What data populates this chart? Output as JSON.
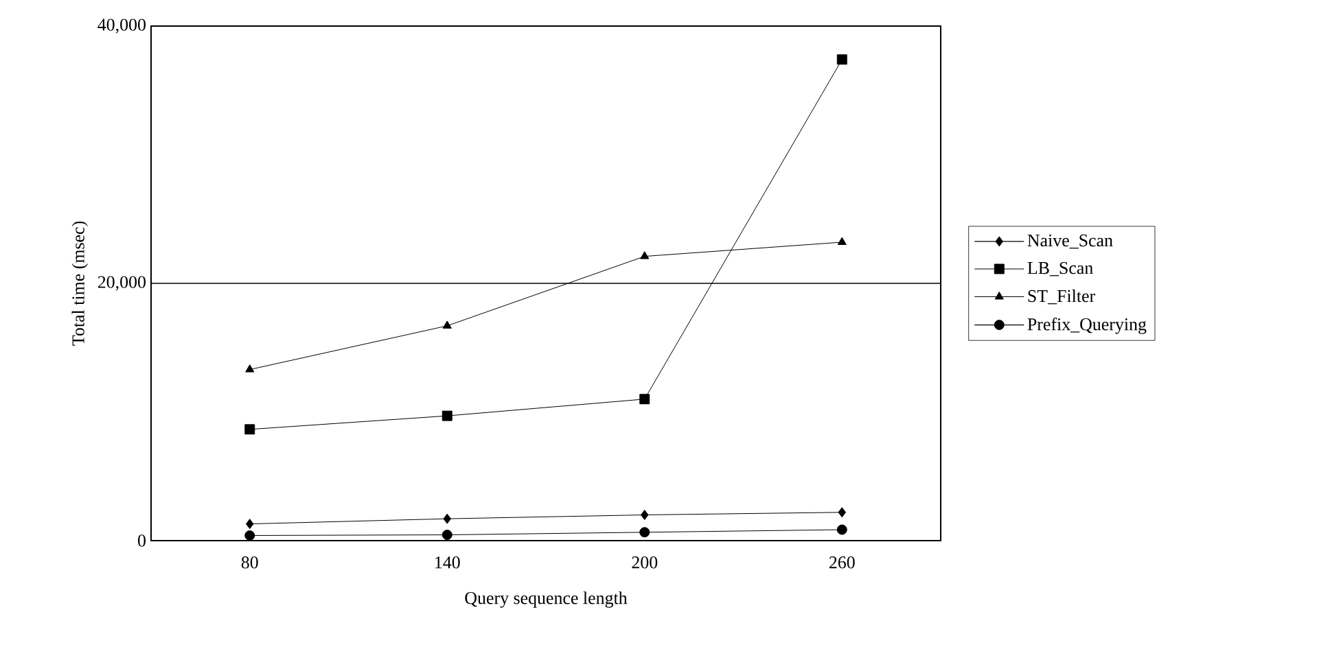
{
  "chart_data": {
    "type": "line",
    "xlabel": "Query sequence length",
    "ylabel": "Total time (msec)",
    "categories": [
      "80",
      "140",
      "200",
      "260"
    ],
    "series": [
      {
        "name": "Naive_Scan",
        "color": "#000000",
        "marker": "diamond",
        "values": [
          1300,
          1700,
          2000,
          2200
        ]
      },
      {
        "name": "LB_Scan",
        "color": "#000000",
        "marker": "square",
        "values": [
          8650,
          9700,
          11000,
          37400
        ]
      },
      {
        "name": "ST_Filter",
        "color": "#000000",
        "marker": "triangle",
        "values": [
          13300,
          16700,
          22100,
          23200
        ]
      },
      {
        "name": "Prefix_Querying",
        "color": "#000000",
        "marker": "circle",
        "values": [
          400,
          450,
          650,
          850
        ]
      }
    ],
    "ylim": [
      0,
      40000
    ],
    "yticks": [
      {
        "value": 0,
        "label": "0"
      },
      {
        "value": 20000,
        "label": "20,000"
      },
      {
        "value": 40000,
        "label": "40,000"
      }
    ],
    "grid": "y",
    "legend": "right",
    "line_style": "solid"
  }
}
